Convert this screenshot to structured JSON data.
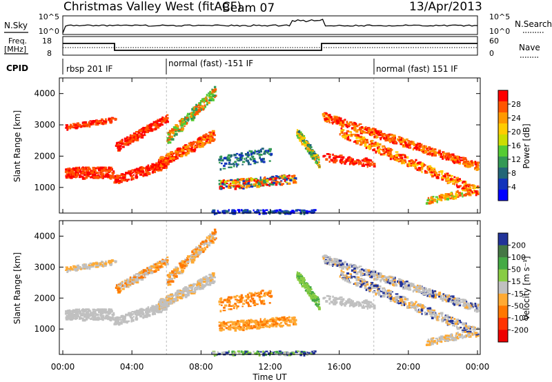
{
  "header": {
    "station": "Christmas Valley West (fitACF)",
    "beam": "Beam 07",
    "date": "13/Apr/2013"
  },
  "top_panels": {
    "nsky_label": "N.Sky",
    "nsearch_label": "N.Search",
    "nsky_ticks": [
      "10^5",
      "10^0"
    ],
    "nsearch_ticks": [
      "10^5",
      "10^0"
    ],
    "freq_label_1": "Freq.",
    "freq_label_2": "[MHz]",
    "freq_ticks": [
      "18",
      "8"
    ],
    "nave_label": "Nave",
    "nave_ticks": [
      "60",
      "0"
    ],
    "cpid_label": "CPID",
    "cpid_segments": [
      {
        "label": "rbsp 201 IF",
        "start_h": 0,
        "end_h": 6
      },
      {
        "label": "normal (fast) -151 IF",
        "start_h": 6,
        "end_h": 18
      },
      {
        "label": "normal (fast) 151 IF",
        "start_h": 18,
        "end_h": 24
      }
    ]
  },
  "chart_data": [
    {
      "type": "heatmap",
      "name": "Power panel",
      "ylabel": "Slant Range [km]",
      "yticks": [
        1000,
        2000,
        3000,
        4000
      ],
      "ylim": [
        180,
        4500
      ],
      "xlim": [
        0,
        24
      ],
      "colorbar_label": "Power [dB]",
      "colorbar_ticks": [
        "28",
        "24",
        "20",
        "16",
        "12",
        "8",
        "4"
      ],
      "colors": [
        "#ff0000",
        "#ff5500",
        "#ff9900",
        "#ffcc00",
        "#ccdd00",
        "#55cc33",
        "#339955",
        "#226677",
        "#1133bb",
        "#0000ff"
      ]
    },
    {
      "type": "heatmap",
      "name": "Velocity panel",
      "ylabel": "Slant Range [km]",
      "yticks": [
        1000,
        2000,
        3000,
        4000
      ],
      "ylim": [
        180,
        4500
      ],
      "xlim": [
        0,
        24
      ],
      "colorbar_label": "Velocity [m s⁻¹]",
      "colorbar_ticks": [
        "200",
        "100",
        "50",
        "15",
        "-15",
        "-50",
        "-100",
        "-200"
      ],
      "colors": [
        "#223399",
        "#447744",
        "#44aa44",
        "#88cc44",
        "#c0c0c0",
        "#ffaa33",
        "#ff7700",
        "#ff3300",
        "#ee0000"
      ]
    }
  ],
  "xaxis": {
    "ticks": [
      "00:00",
      "04:00",
      "08:00",
      "12:00",
      "16:00",
      "20:00",
      "00:00"
    ],
    "label": "Time UT"
  }
}
